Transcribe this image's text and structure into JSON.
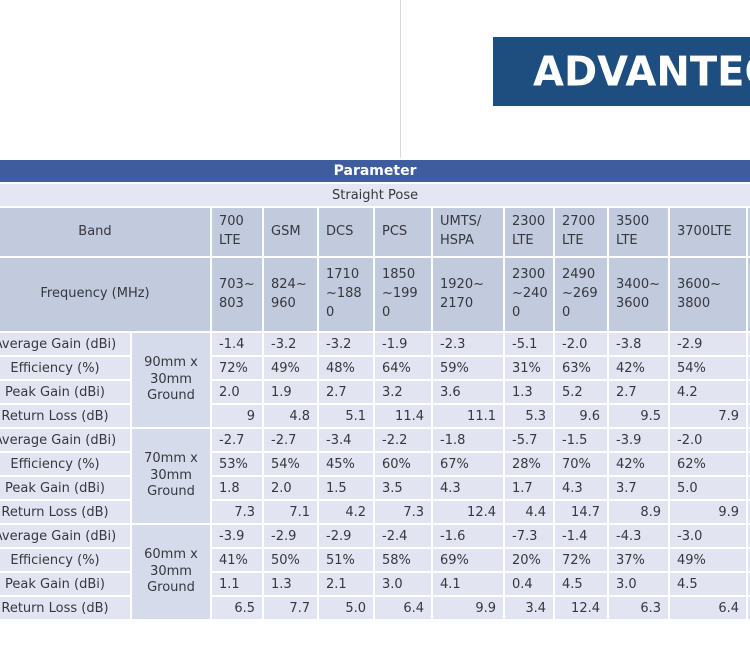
{
  "logo": {
    "text": "ADVANTECH",
    "brand_color": "#1e4e80"
  },
  "table": {
    "title": "Parameter",
    "subtitle": "Straight Pose",
    "band_label": "Band",
    "frequency_label": "Frequency (MHz)",
    "columns": [
      {
        "band": "700\nLTE",
        "frequency": "703~\n803"
      },
      {
        "band": "GSM",
        "frequency": "824~\n960"
      },
      {
        "band": "DCS",
        "frequency": "1710\n~188\n0"
      },
      {
        "band": "PCS",
        "frequency": "1850\n~199\n0"
      },
      {
        "band": "UMTS/\nHSPA",
        "frequency": "1920~\n2170"
      },
      {
        "band": "2300\nLTE",
        "frequency": "2300\n~240\n0"
      },
      {
        "band": "2700\nLTE",
        "frequency": "2490\n~269\n0"
      },
      {
        "band": "3500\nLTE",
        "frequency": "3400~\n3600"
      },
      {
        "band": "3700LTE",
        "frequency": "3600~\n3800"
      }
    ],
    "row_labels": [
      "Average Gain (dBi)",
      "Efficiency (%)",
      "Peak Gain (dBi)",
      "Return Loss (dB)"
    ],
    "groups": [
      {
        "ground": "90mm x\n30mm\nGround",
        "average_gain": [
          "-1.4",
          "-3.2",
          "-3.2",
          "-1.9",
          "-2.3",
          "-5.1",
          "-2.0",
          "-3.8",
          "-2.9"
        ],
        "efficiency": [
          "72%",
          "49%",
          "48%",
          "64%",
          "59%",
          "31%",
          "63%",
          "42%",
          "54%"
        ],
        "peak_gain": [
          "2.0",
          "1.9",
          "2.7",
          "3.2",
          "3.6",
          "1.3",
          "5.2",
          "2.7",
          "4.2"
        ],
        "return_loss": [
          "9",
          "4.8",
          "5.1",
          "11.4",
          "11.1",
          "5.3",
          "9.6",
          "9.5",
          "7.9"
        ]
      },
      {
        "ground": "70mm x\n30mm\nGround",
        "average_gain": [
          "-2.7",
          "-2.7",
          "-3.4",
          "-2.2",
          "-1.8",
          "-5.7",
          "-1.5",
          "-3.9",
          "-2.0"
        ],
        "efficiency": [
          "53%",
          "54%",
          "45%",
          "60%",
          "67%",
          "28%",
          "70%",
          "42%",
          "62%"
        ],
        "peak_gain": [
          "1.8",
          "2.0",
          "1.5",
          "3.5",
          "4.3",
          "1.7",
          "4.3",
          "3.7",
          "5.0"
        ],
        "return_loss": [
          "7.3",
          "7.1",
          "4.2",
          "7.3",
          "12.4",
          "4.4",
          "14.7",
          "8.9",
          "9.9"
        ]
      },
      {
        "ground": "60mm x\n30mm\nGround",
        "average_gain": [
          "-3.9",
          "-2.9",
          "-2.9",
          "-2.4",
          "-1.6",
          "-7.3",
          "-1.4",
          "-4.3",
          "-3.0"
        ],
        "efficiency": [
          "41%",
          "50%",
          "51%",
          "58%",
          "69%",
          "20%",
          "72%",
          "37%",
          "49%"
        ],
        "peak_gain": [
          "1.1",
          "1.3",
          "2.1",
          "3.0",
          "4.1",
          "0.4",
          "4.5",
          "3.0",
          "4.5"
        ],
        "return_loss": [
          "6.5",
          "7.7",
          "5.0",
          "6.4",
          "9.9",
          "3.4",
          "12.4",
          "6.3",
          "6.4"
        ]
      }
    ],
    "colors": {
      "title_bar": "#3e5c9e",
      "top_border": "#1b3a66",
      "header_cell": "#c1cbdd",
      "data_cell": "#e2e5f1",
      "group_cell": "#d5dbea",
      "subtitle_cell": "#e4e7f2",
      "gridline": "#ffffff",
      "text": "#37373f"
    }
  }
}
